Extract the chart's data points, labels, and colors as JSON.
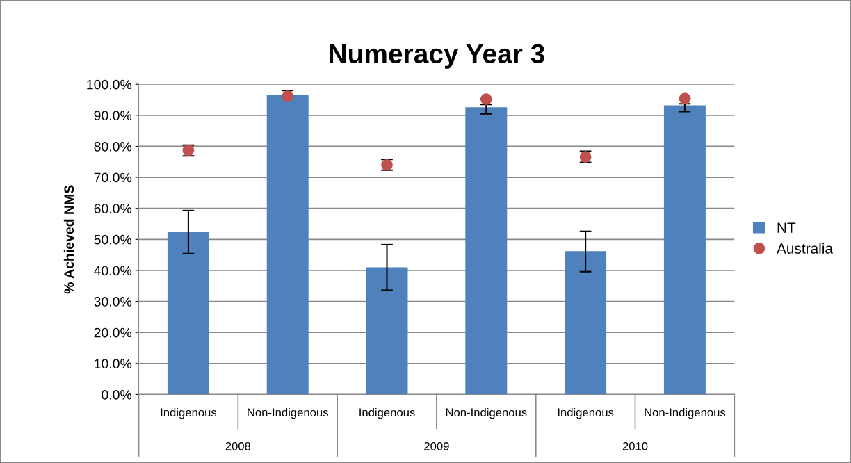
{
  "chart_data": {
    "type": "bar",
    "title": "Numeracy Year 3",
    "ylabel": "% Achieved NMS",
    "categories": [
      "Indigenous",
      "Non-Indigenous",
      "Indigenous",
      "Non-Indigenous",
      "Indigenous",
      "Non-Indigenous"
    ],
    "annotations": [
      "2008",
      "2009",
      "2010"
    ],
    "series": [
      {
        "name": "NT",
        "color": "#4f81bd",
        "values": [
          52.5,
          96.7,
          41.0,
          92.6,
          46.2,
          93.2
        ],
        "errors": [
          [
            45.4,
            59.3
          ],
          [
            96.7,
            98.0
          ],
          [
            33.6,
            48.3
          ],
          [
            90.5,
            93.5
          ],
          [
            39.6,
            52.6
          ],
          [
            91.2,
            93.7
          ]
        ]
      },
      {
        "name": "Australia",
        "type": "scatter",
        "color": "#c0504d",
        "marker": "circle",
        "values": [
          78.7,
          96.1,
          74.0,
          95.2,
          76.6,
          95.4
        ],
        "errors": [
          [
            76.9,
            80.4
          ],
          null,
          [
            72.3,
            75.8
          ],
          null,
          [
            74.8,
            78.4
          ],
          null
        ]
      }
    ],
    "ylim": [
      0,
      100
    ],
    "yticks": [
      {
        "value": 0,
        "label": "0.0%"
      },
      {
        "value": 10,
        "label": "10.0%"
      },
      {
        "value": 20,
        "label": "20.0%"
      },
      {
        "value": 30,
        "label": "30.0%"
      },
      {
        "value": 40,
        "label": "40.0%"
      },
      {
        "value": 50,
        "label": "50.0%"
      },
      {
        "value": 60,
        "label": "60.0%"
      },
      {
        "value": 70,
        "label": "70.0%"
      },
      {
        "value": 80,
        "label": "80.0%"
      },
      {
        "value": 90,
        "label": "90.0%"
      },
      {
        "value": 100,
        "label": "100.0%"
      }
    ],
    "grid": "y",
    "legend": "right"
  }
}
